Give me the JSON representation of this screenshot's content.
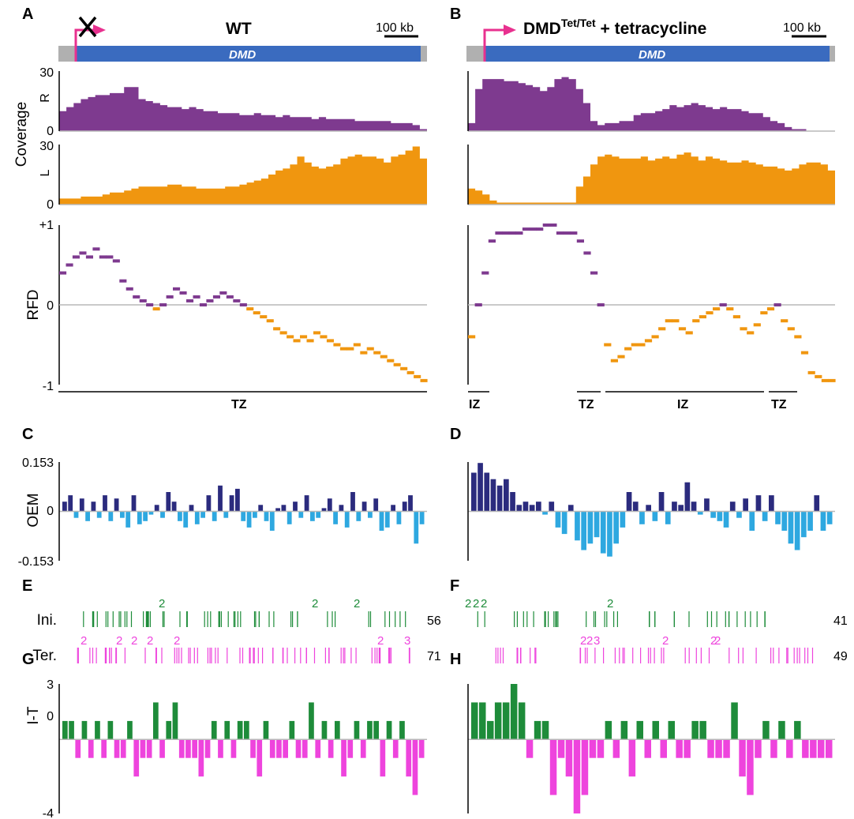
{
  "panel_labels": [
    "A",
    "B",
    "C",
    "D",
    "E",
    "F",
    "G",
    "H"
  ],
  "colors": {
    "gene_bar": "#3a6bbf",
    "gene_flank": "#b0b0b0",
    "tss_arrow": "#e8318f",
    "rightward": "#7e3a8f",
    "leftward": "#f0960f",
    "oem_pos": "#2b2b7e",
    "oem_neg": "#2ea8e0",
    "initiation": "#1e8c3a",
    "termination": "#ee44dd",
    "zero_line": "#b8b8b8"
  },
  "headers": {
    "left_title": "WT",
    "right_title_main": "DMD",
    "right_title_sup": "Tet/Tet",
    "right_title_rest": " + tetracycline",
    "scale_label": "100 kb",
    "gene_name": "DMD",
    "deleted_tss_icon": "x-cross-icon"
  },
  "axes": {
    "coverage_label": "Coverage",
    "r_label": "R",
    "l_label": "L",
    "cov_top_tick": "30",
    "cov_zero_tick": "0",
    "rfd_label": "RFD",
    "rfd_top_tick": "+1",
    "rfd_zero_tick": "0",
    "rfd_bottom_tick": "-1",
    "oem_label": "OEM",
    "oem_top_tick": "0.153",
    "oem_zero_tick": "0",
    "oem_bottom_tick": "-0.153",
    "it_label": "I-T",
    "it_top_tick": "3",
    "it_zero_tick": "0",
    "it_bottom_tick": "-4",
    "ini_label": "Ini.",
    "ter_label": "Ter."
  },
  "zones": {
    "left": [
      "TZ"
    ],
    "right": [
      "IZ",
      "TZ",
      "IZ",
      "TZ"
    ]
  },
  "counts": {
    "left_ini": "56",
    "left_ter": "71",
    "right_ini": "41",
    "right_ter": "49"
  },
  "chart_data": [
    {
      "panel": "A",
      "type": "area",
      "ylabel": "Coverage",
      "ylim": [
        0,
        30
      ],
      "series": [
        {
          "name": "R",
          "values": [
            10,
            12,
            14,
            16,
            17,
            18,
            18,
            19,
            19,
            22,
            22,
            16,
            15,
            14,
            13,
            12,
            12,
            11,
            12,
            11,
            10,
            10,
            9,
            9,
            9,
            8,
            8,
            9,
            8,
            8,
            7,
            8,
            7,
            7,
            7,
            6,
            7,
            6,
            6,
            6,
            6,
            5,
            5,
            5,
            5,
            5,
            4,
            4,
            4,
            3,
            1
          ]
        },
        {
          "name": "L",
          "values": [
            3,
            3,
            3,
            4,
            4,
            4,
            5,
            6,
            6,
            7,
            8,
            9,
            9,
            9,
            9,
            10,
            10,
            9,
            9,
            8,
            8,
            8,
            8,
            9,
            9,
            10,
            11,
            12,
            13,
            15,
            17,
            18,
            20,
            24,
            21,
            19,
            18,
            19,
            20,
            23,
            24,
            25,
            24,
            24,
            23,
            21,
            24,
            25,
            27,
            29,
            23
          ]
        }
      ]
    },
    {
      "panel": "B",
      "type": "area",
      "ylabel": "Coverage",
      "ylim": [
        0,
        30
      ],
      "series": [
        {
          "name": "R",
          "values": [
            4,
            21,
            26,
            26,
            26,
            25,
            25,
            24,
            23,
            22,
            20,
            22,
            26,
            27,
            26,
            21,
            14,
            5,
            3,
            4,
            4,
            5,
            5,
            8,
            9,
            9,
            10,
            11,
            13,
            12,
            13,
            14,
            13,
            12,
            11,
            12,
            11,
            11,
            10,
            9,
            9,
            7,
            5,
            4,
            2,
            1,
            1,
            0,
            0,
            0,
            0
          ]
        },
        {
          "name": "L",
          "values": [
            8,
            7,
            5,
            2,
            1,
            1,
            1,
            1,
            1,
            1,
            1,
            1,
            1,
            1,
            1,
            9,
            14,
            20,
            24,
            25,
            24,
            23,
            23,
            23,
            24,
            22,
            23,
            24,
            23,
            25,
            26,
            24,
            22,
            24,
            23,
            22,
            21,
            21,
            22,
            21,
            20,
            19,
            19,
            18,
            17,
            18,
            20,
            21,
            21,
            20,
            17
          ]
        }
      ]
    },
    {
      "panel": "A",
      "type": "scatter",
      "ylabel": "RFD",
      "ylim": [
        -1,
        1
      ],
      "values": [
        0.4,
        0.5,
        0.6,
        0.65,
        0.6,
        0.7,
        0.6,
        0.6,
        0.55,
        0.3,
        0.2,
        0.1,
        0.05,
        0.0,
        -0.05,
        0.0,
        0.1,
        0.2,
        0.15,
        0.05,
        0.1,
        0.0,
        0.05,
        0.1,
        0.15,
        0.1,
        0.05,
        0.0,
        -0.05,
        -0.1,
        -0.15,
        -0.2,
        -0.3,
        -0.35,
        -0.4,
        -0.45,
        -0.4,
        -0.45,
        -0.35,
        -0.4,
        -0.45,
        -0.5,
        -0.55,
        -0.55,
        -0.5,
        -0.6,
        -0.55,
        -0.6,
        -0.65,
        -0.7,
        -0.75,
        -0.8,
        -0.85,
        -0.9,
        -0.95
      ]
    },
    {
      "panel": "B",
      "type": "scatter",
      "ylabel": "RFD",
      "ylim": [
        -1,
        1
      ],
      "values": [
        -0.4,
        0.0,
        0.4,
        0.8,
        0.9,
        0.9,
        0.9,
        0.9,
        0.95,
        0.95,
        0.95,
        1.0,
        1.0,
        0.9,
        0.9,
        0.9,
        0.8,
        0.65,
        0.4,
        0.0,
        -0.5,
        -0.7,
        -0.65,
        -0.55,
        -0.5,
        -0.5,
        -0.45,
        -0.4,
        -0.3,
        -0.2,
        -0.2,
        -0.3,
        -0.35,
        -0.2,
        -0.15,
        -0.1,
        -0.05,
        0.0,
        -0.05,
        -0.15,
        -0.3,
        -0.35,
        -0.25,
        -0.1,
        -0.05,
        0.0,
        -0.2,
        -0.3,
        -0.4,
        -0.6,
        -0.85,
        -0.9,
        -0.95,
        -0.95
      ]
    },
    {
      "panel": "C",
      "type": "bar",
      "ylabel": "OEM",
      "ylim": [
        -0.153,
        0.153
      ],
      "values": [
        0.03,
        0.05,
        -0.02,
        0.04,
        -0.03,
        0.03,
        -0.02,
        0.05,
        -0.03,
        0.04,
        -0.02,
        -0.05,
        0.05,
        -0.04,
        -0.03,
        -0.01,
        0.02,
        -0.02,
        0.06,
        0.03,
        -0.03,
        -0.05,
        0.02,
        -0.04,
        -0.02,
        0.05,
        -0.03,
        0.08,
        -0.02,
        0.05,
        0.07,
        -0.03,
        -0.05,
        -0.02,
        0.02,
        -0.03,
        -0.06,
        0.01,
        0.02,
        -0.04,
        0.03,
        -0.02,
        0.05,
        -0.03,
        -0.02,
        0.01,
        0.04,
        -0.04,
        0.02,
        -0.05,
        0.06,
        -0.03,
        0.03,
        -0.02,
        0.04,
        -0.06,
        -0.05,
        0.02,
        -0.04,
        0.03,
        0.05,
        -0.1,
        -0.04
      ]
    },
    {
      "panel": "D",
      "type": "bar",
      "ylabel": "OEM",
      "ylim": [
        -0.153,
        0.153
      ],
      "values": [
        0.12,
        0.15,
        0.12,
        0.1,
        0.08,
        0.1,
        0.06,
        0.02,
        0.03,
        0.02,
        0.03,
        -0.01,
        0.03,
        -0.05,
        -0.07,
        0.02,
        -0.09,
        -0.12,
        -0.1,
        -0.08,
        -0.13,
        -0.14,
        -0.1,
        -0.05,
        0.06,
        0.03,
        -0.04,
        0.02,
        -0.03,
        0.06,
        -0.04,
        0.03,
        0.02,
        0.09,
        0.03,
        -0.01,
        0.04,
        -0.02,
        -0.03,
        -0.05,
        0.03,
        -0.02,
        0.04,
        -0.06,
        0.05,
        -0.03,
        0.05,
        -0.04,
        -0.06,
        -0.1,
        -0.12,
        -0.08,
        -0.06,
        0.05,
        -0.06,
        -0.04
      ]
    },
    {
      "panel": "G",
      "type": "bar",
      "ylabel": "I-T",
      "ylim": [
        -4,
        3
      ],
      "values": [
        1,
        1,
        -1,
        1,
        -1,
        1,
        -1,
        1,
        -1,
        -1,
        1,
        -2,
        -1,
        -1,
        2,
        -1,
        1,
        2,
        -1,
        -1,
        -1,
        -2,
        -1,
        1,
        -1,
        1,
        -1,
        1,
        1,
        -1,
        -2,
        1,
        -1,
        -1,
        -1,
        1,
        -1,
        -1,
        2,
        -1,
        1,
        -1,
        1,
        -2,
        -1,
        1,
        -1,
        1,
        1,
        -2,
        1,
        -1,
        1,
        -2,
        -3,
        -1
      ]
    },
    {
      "panel": "H",
      "type": "bar",
      "ylabel": "I-T",
      "ylim": [
        -4,
        3
      ],
      "values": [
        2,
        2,
        1,
        2,
        2,
        3,
        2,
        -1,
        1,
        1,
        -3,
        -1,
        -2,
        -4,
        -3,
        -1,
        -1,
        1,
        -1,
        1,
        -2,
        1,
        -1,
        1,
        -1,
        1,
        -1,
        -1,
        1,
        1,
        -1,
        -1,
        -1,
        2,
        -2,
        -3,
        -1,
        1,
        -1,
        1,
        -1,
        1,
        -1,
        -1,
        -1,
        -1
      ]
    }
  ]
}
